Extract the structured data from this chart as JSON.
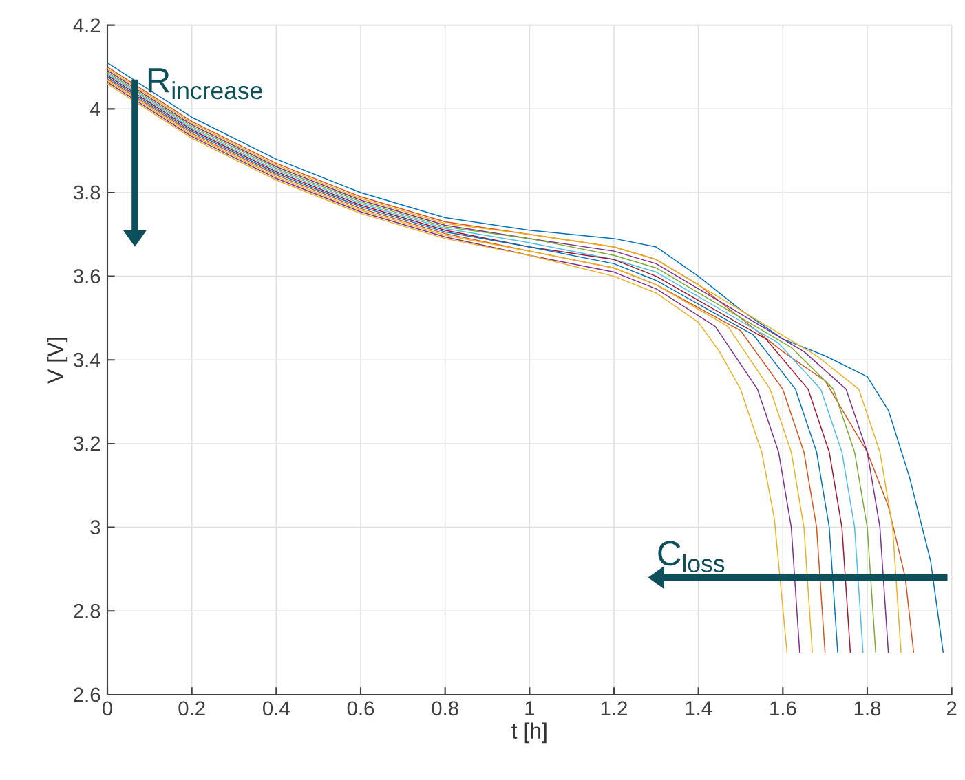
{
  "chart_data": {
    "type": "line",
    "xlabel": "t [h]",
    "ylabel": "V [V]",
    "xlim": [
      0,
      2
    ],
    "ylim": [
      2.6,
      4.2
    ],
    "xticks": [
      0,
      0.2,
      0.4,
      0.6,
      0.8,
      1,
      1.2,
      1.4,
      1.6,
      1.8,
      2
    ],
    "yticks": [
      2.6,
      2.8,
      3,
      3.2,
      3.4,
      3.6,
      3.8,
      4,
      4.2
    ],
    "grid": true,
    "annotations": [
      "R$_{increase}$",
      "C$_{loss}$"
    ],
    "series": [
      {
        "color": "#0072bd",
        "x": [
          0,
          0.2,
          0.4,
          0.6,
          0.8,
          1.0,
          1.2,
          1.3,
          1.4,
          1.5,
          1.6,
          1.7,
          1.8,
          1.85,
          1.9,
          1.95,
          1.98
        ],
        "values": [
          4.11,
          3.98,
          3.88,
          3.8,
          3.74,
          3.71,
          3.69,
          3.67,
          3.6,
          3.52,
          3.45,
          3.41,
          3.36,
          3.28,
          3.12,
          2.92,
          2.7
        ]
      },
      {
        "color": "#d95319",
        "x": [
          0,
          0.2,
          0.4,
          0.6,
          0.8,
          1.0,
          1.2,
          1.3,
          1.4,
          1.5,
          1.6,
          1.7,
          1.8,
          1.85,
          1.89,
          1.91
        ],
        "values": [
          4.1,
          3.97,
          3.87,
          3.79,
          3.73,
          3.7,
          3.67,
          3.64,
          3.58,
          3.5,
          3.42,
          3.35,
          3.18,
          3.05,
          2.88,
          2.7
        ]
      },
      {
        "color": "#edb120",
        "x": [
          0,
          0.2,
          0.4,
          0.6,
          0.8,
          1.0,
          1.2,
          1.3,
          1.68,
          1.78,
          1.83,
          1.86,
          1.88
        ],
        "values": [
          4.096,
          3.966,
          3.866,
          3.786,
          3.726,
          3.7,
          3.67,
          3.64,
          3.41,
          3.33,
          3.18,
          3.0,
          2.7
        ]
      },
      {
        "color": "#7e2f8e",
        "x": [
          0,
          0.2,
          0.4,
          0.6,
          0.8,
          1.0,
          1.2,
          1.3,
          1.65,
          1.75,
          1.8,
          1.83,
          1.85
        ],
        "values": [
          4.092,
          3.962,
          3.862,
          3.782,
          3.722,
          3.69,
          3.66,
          3.63,
          3.42,
          3.33,
          3.18,
          3.0,
          2.7
        ]
      },
      {
        "color": "#77ac30",
        "x": [
          0,
          0.2,
          0.4,
          0.6,
          0.8,
          1.0,
          1.2,
          1.3,
          1.62,
          1.72,
          1.77,
          1.8,
          1.82
        ],
        "values": [
          4.088,
          3.958,
          3.858,
          3.778,
          3.718,
          3.69,
          3.65,
          3.62,
          3.43,
          3.33,
          3.18,
          3.0,
          2.7
        ]
      },
      {
        "color": "#4dbeee",
        "x": [
          0,
          0.2,
          0.4,
          0.6,
          0.8,
          1.0,
          1.2,
          1.3,
          1.59,
          1.69,
          1.74,
          1.77,
          1.79
        ],
        "values": [
          4.084,
          3.954,
          3.854,
          3.774,
          3.714,
          3.68,
          3.64,
          3.61,
          3.44,
          3.33,
          3.18,
          3.0,
          2.7
        ]
      },
      {
        "color": "#a2142f",
        "x": [
          0,
          0.2,
          0.4,
          0.6,
          0.8,
          1.0,
          1.2,
          1.3,
          1.56,
          1.66,
          1.71,
          1.74,
          1.76
        ],
        "values": [
          4.08,
          3.95,
          3.85,
          3.77,
          3.71,
          3.67,
          3.64,
          3.6,
          3.45,
          3.33,
          3.18,
          3.0,
          2.7
        ]
      },
      {
        "color": "#0072bd",
        "x": [
          0,
          0.2,
          0.4,
          0.6,
          0.8,
          1.0,
          1.2,
          1.3,
          1.53,
          1.63,
          1.68,
          1.71,
          1.73
        ],
        "values": [
          4.076,
          3.946,
          3.846,
          3.766,
          3.706,
          3.67,
          3.63,
          3.59,
          3.46,
          3.33,
          3.18,
          3.0,
          2.7
        ]
      },
      {
        "color": "#d95319",
        "x": [
          0,
          0.2,
          0.4,
          0.6,
          0.8,
          1.0,
          1.2,
          1.3,
          1.5,
          1.6,
          1.65,
          1.68,
          1.7
        ],
        "values": [
          4.072,
          3.942,
          3.842,
          3.762,
          3.702,
          3.66,
          3.62,
          3.58,
          3.47,
          3.33,
          3.18,
          3.0,
          2.7
        ]
      },
      {
        "color": "#edb120",
        "x": [
          0,
          0.2,
          0.4,
          0.6,
          0.8,
          1.0,
          1.2,
          1.3,
          1.47,
          1.57,
          1.62,
          1.65,
          1.67
        ],
        "values": [
          4.068,
          3.938,
          3.838,
          3.758,
          3.698,
          3.66,
          3.62,
          3.58,
          3.48,
          3.33,
          3.18,
          3.0,
          2.7
        ]
      },
      {
        "color": "#7e2f8e",
        "x": [
          0,
          0.2,
          0.4,
          0.6,
          0.8,
          1.0,
          1.2,
          1.3,
          1.44,
          1.54,
          1.59,
          1.62,
          1.64
        ],
        "values": [
          4.064,
          3.934,
          3.834,
          3.754,
          3.694,
          3.65,
          3.61,
          3.57,
          3.48,
          3.33,
          3.18,
          3.0,
          2.7
        ]
      },
      {
        "color": "#edb120",
        "x": [
          0,
          0.2,
          0.4,
          0.6,
          0.8,
          1.0,
          1.2,
          1.3,
          1.4,
          1.45,
          1.5,
          1.55,
          1.58,
          1.61
        ],
        "values": [
          4.06,
          3.93,
          3.83,
          3.75,
          3.69,
          3.65,
          3.6,
          3.56,
          3.49,
          3.42,
          3.33,
          3.18,
          3.02,
          2.7
        ]
      }
    ]
  }
}
